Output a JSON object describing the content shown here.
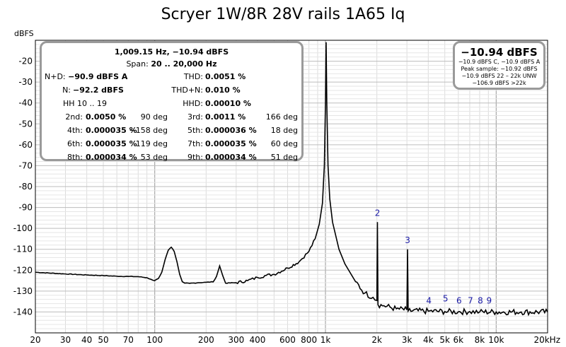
{
  "chart_data": {
    "type": "line",
    "title": "Scryer 1W/8R 28V rails 1A65 Iq",
    "ylabel": "dBFS",
    "xlabel": "",
    "x_scale": "log",
    "xlim": [
      20,
      20000
    ],
    "ylim": [
      -150,
      -10
    ],
    "y_ticks": [
      -20,
      -30,
      -40,
      -50,
      -60,
      -70,
      -80,
      -90,
      -100,
      -110,
      -120,
      -130,
      -140
    ],
    "x_ticks": [
      {
        "value": 20,
        "label": "20"
      },
      {
        "value": 30,
        "label": "30"
      },
      {
        "value": 40,
        "label": "40"
      },
      {
        "value": 50,
        "label": "50"
      },
      {
        "value": 70,
        "label": "70"
      },
      {
        "value": 100,
        "label": "100"
      },
      {
        "value": 200,
        "label": "200"
      },
      {
        "value": 300,
        "label": "300"
      },
      {
        "value": 400,
        "label": "400"
      },
      {
        "value": 600,
        "label": "600"
      },
      {
        "value": 800,
        "label": "800"
      },
      {
        "value": 1000,
        "label": "1k"
      },
      {
        "value": 2000,
        "label": "2k"
      },
      {
        "value": 3000,
        "label": "3k"
      },
      {
        "value": 4000,
        "label": "4k"
      },
      {
        "value": 5000,
        "label": "5k"
      },
      {
        "value": 6000,
        "label": "6k"
      },
      {
        "value": 8000,
        "label": "8k"
      },
      {
        "value": 10000,
        "label": "10k"
      },
      {
        "value": 20000,
        "label": "20kHz"
      }
    ],
    "grid": true,
    "series": [
      {
        "points": [
          [
            20,
            -121.0
          ],
          [
            30,
            -121.8
          ],
          [
            40,
            -122.3
          ],
          [
            50,
            -122.6
          ],
          [
            60,
            -122.9
          ],
          [
            70,
            -123.0
          ],
          [
            80,
            -123.1
          ],
          [
            90,
            -123.6
          ],
          [
            95,
            -124.4
          ],
          [
            98,
            -124.9
          ],
          [
            100,
            -125.0
          ],
          [
            105,
            -124.0
          ],
          [
            110,
            -121.0
          ],
          [
            115,
            -115.0
          ],
          [
            120,
            -110.5
          ],
          [
            125,
            -109.0
          ],
          [
            130,
            -111.0
          ],
          [
            135,
            -116.0
          ],
          [
            140,
            -122.0
          ],
          [
            145,
            -125.5
          ],
          [
            150,
            -126.2
          ],
          [
            160,
            -126.3
          ],
          [
            180,
            -126.0
          ],
          [
            200,
            -125.8
          ],
          [
            220,
            -125.6
          ],
          [
            230,
            -123.0
          ],
          [
            240,
            -118.0
          ],
          [
            250,
            -122.5
          ],
          [
            260,
            -126.2
          ],
          [
            300,
            -126.0
          ],
          [
            350,
            -125.0
          ],
          [
            400,
            -123.5
          ],
          [
            450,
            -122.5
          ],
          [
            500,
            -122.0
          ],
          [
            600,
            -119.0
          ],
          [
            700,
            -116.0
          ],
          [
            800,
            -111.0
          ],
          [
            870,
            -105.0
          ],
          [
            920,
            -98.0
          ],
          [
            960,
            -88.0
          ],
          [
            985,
            -70.0
          ],
          [
            1000,
            -40.0
          ],
          [
            1009.15,
            -10.94
          ],
          [
            1018,
            -40.0
          ],
          [
            1035,
            -70.0
          ],
          [
            1060,
            -86.0
          ],
          [
            1100,
            -97.0
          ],
          [
            1200,
            -110.0
          ],
          [
            1300,
            -117.0
          ],
          [
            1500,
            -125.5
          ],
          [
            1700,
            -131.0
          ],
          [
            1900,
            -133.0
          ],
          [
            2000,
            -134.5
          ],
          [
            2015,
            -97.0
          ],
          [
            2030,
            -136.5
          ],
          [
            2200,
            -137.0
          ],
          [
            2600,
            -138.5
          ],
          [
            3000,
            -139.0
          ],
          [
            3025,
            -110.0
          ],
          [
            3050,
            -139.5
          ],
          [
            4000,
            -139.6
          ],
          [
            5000,
            -139.8
          ],
          [
            6000,
            -139.9
          ],
          [
            7000,
            -139.8
          ],
          [
            8000,
            -140.0
          ],
          [
            10000,
            -140.0
          ],
          [
            14000,
            -140.0
          ],
          [
            20000,
            -140.0
          ]
        ]
      }
    ],
    "harmonic_markers": [
      {
        "label": "2",
        "x": 2018,
        "y": -94
      },
      {
        "label": "3",
        "x": 3027,
        "y": -107
      },
      {
        "label": "4",
        "x": 4036,
        "y": -136
      },
      {
        "label": "5",
        "x": 5046,
        "y": -135
      },
      {
        "label": "6",
        "x": 6055,
        "y": -136
      },
      {
        "label": "7",
        "x": 7064,
        "y": -136
      },
      {
        "label": "8",
        "x": 8073,
        "y": -136
      },
      {
        "label": "9",
        "x": 9082,
        "y": -136
      }
    ]
  },
  "stats": {
    "header": "1,009.15 Hz, −10.94 dBFS",
    "span_label": "Span:",
    "span_value": "20 .. 20,000 Hz",
    "nd_label": "N+D:",
    "nd_value": "−90.9 dBFS A",
    "thd_label": "THD:",
    "thd_value": "0.0051 %",
    "n_label": "N:",
    "n_value": "−92.2 dBFS",
    "thdn_label": "THD+N:",
    "thdn_value": "0.010 %",
    "hh_label": "HH 10 .. 19",
    "hhd_label": "HHD:",
    "hhd_value": "0.00010 %",
    "harmonics": [
      {
        "left_label": "2nd:",
        "left_value": "0.0050 %",
        "left_phase": "90 deg",
        "right_label": "3rd:",
        "right_value": "0.0011 %",
        "right_phase": "166 deg"
      },
      {
        "left_label": "4th:",
        "left_value": "0.000035 %",
        "left_phase": "−158 deg",
        "right_label": "5th:",
        "right_value": "0.000036 %",
        "right_phase": "18 deg"
      },
      {
        "left_label": "6th:",
        "left_value": "0.000035 %",
        "left_phase": "119 deg",
        "right_label": "7th:",
        "right_value": "0.000035 %",
        "right_phase": "60 deg"
      },
      {
        "left_label": "8th:",
        "left_value": "0.000034 %",
        "left_phase": "53 deg",
        "right_label": "9th:",
        "right_value": "0.000034 %",
        "right_phase": "51 deg"
      }
    ]
  },
  "peak_box": {
    "value": "−10.94 dBFS",
    "line1": "−10.9 dBFS C, −10.9 dBFS A",
    "line2": "Peak sample: −10.92 dBFS",
    "line3": "−10.9 dBFS 22 – 22k UNW",
    "line4": "−106.9 dBFS >22k"
  }
}
